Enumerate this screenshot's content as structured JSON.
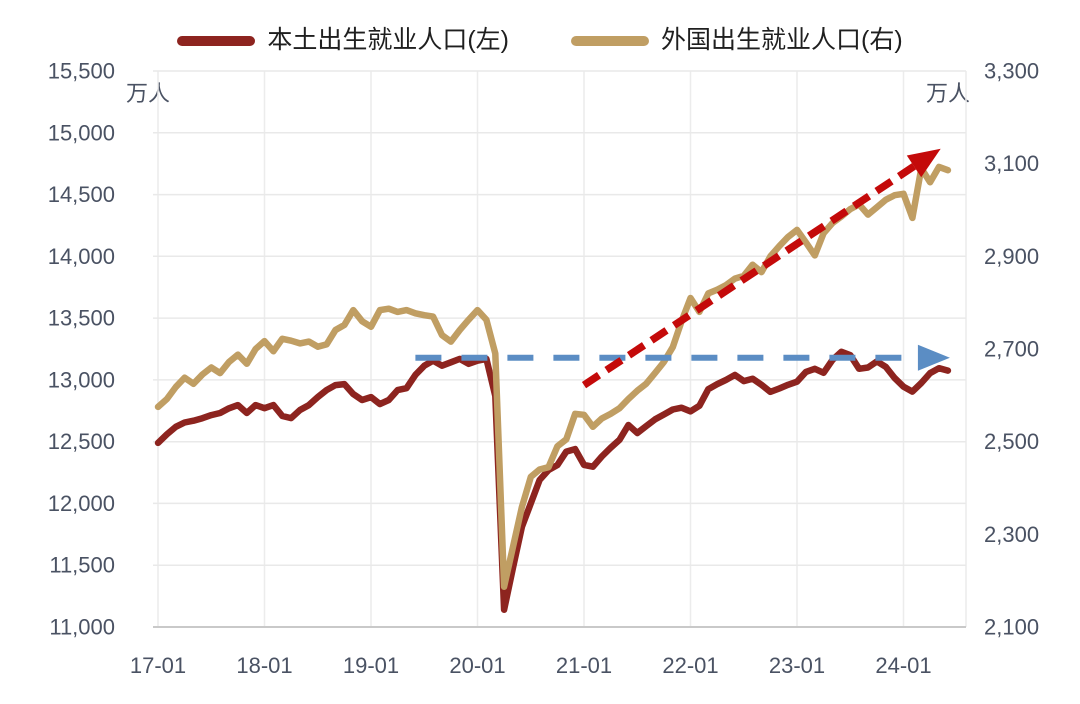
{
  "chart_data": {
    "type": "line",
    "title": "",
    "x": {
      "start": "17-01",
      "end": "24-06",
      "freq": "monthly",
      "tick_labels": [
        "17-01",
        "18-01",
        "19-01",
        "20-01",
        "21-01",
        "22-01",
        "23-01",
        "24-01"
      ]
    },
    "axes": {
      "left": {
        "unit": "万人",
        "min": 11000,
        "max": 15500,
        "step": 500,
        "tick_labels": [
          "15,500",
          "15,000",
          "14,500",
          "14,000",
          "13,500",
          "13,000",
          "12,500",
          "12,000",
          "11,500",
          "11,000"
        ]
      },
      "right": {
        "unit": "万人",
        "min": 2100,
        "max": 3300,
        "step": 200,
        "tick_labels": [
          "3,300",
          "3,100",
          "2,900",
          "2,700",
          "2,500",
          "2,300",
          "2,100"
        ]
      }
    },
    "grid": {
      "horizontal": true,
      "vertical": true
    },
    "legend_position": "top",
    "series": [
      {
        "name": "本土出生就业人口(左)",
        "axis": "left",
        "color": "#8D241F",
        "values": [
          12490,
          12560,
          12620,
          12655,
          12670,
          12690,
          12715,
          12732,
          12770,
          12796,
          12732,
          12796,
          12771,
          12796,
          12708,
          12691,
          12756,
          12796,
          12861,
          12917,
          12958,
          12966,
          12885,
          12837,
          12861,
          12804,
          12837,
          12917,
          12933,
          13040,
          13115,
          13155,
          13115,
          13142,
          13170,
          13130,
          13155,
          13170,
          12870,
          11140,
          11480,
          11810,
          12000,
          12190,
          12270,
          12310,
          12420,
          12440,
          12312,
          12297,
          12380,
          12450,
          12515,
          12635,
          12570,
          12625,
          12680,
          12720,
          12760,
          12775,
          12745,
          12790,
          12925,
          12965,
          13000,
          13040,
          12990,
          13010,
          12960,
          12903,
          12930,
          12960,
          12985,
          13065,
          13090,
          13057,
          13162,
          13227,
          13200,
          13090,
          13100,
          13150,
          13105,
          13015,
          12945,
          12905,
          12975,
          13055,
          13095,
          13075
        ]
      },
      {
        "name": "外国出生就业人口(右)",
        "axis": "right",
        "color": "#C09E63",
        "values": [
          2575,
          2592,
          2618,
          2638,
          2625,
          2645,
          2660,
          2648,
          2672,
          2688,
          2668,
          2700,
          2717,
          2695,
          2722,
          2718,
          2712,
          2716,
          2705,
          2710,
          2741,
          2752,
          2784,
          2760,
          2748,
          2784,
          2787,
          2780,
          2784,
          2777,
          2773,
          2770,
          2730,
          2716,
          2741,
          2763,
          2784,
          2763,
          2690,
          2187,
          2273,
          2359,
          2424,
          2440,
          2445,
          2490,
          2505,
          2560,
          2558,
          2532,
          2550,
          2560,
          2572,
          2592,
          2610,
          2625,
          2648,
          2672,
          2704,
          2760,
          2810,
          2780,
          2820,
          2828,
          2838,
          2852,
          2858,
          2882,
          2866,
          2900,
          2922,
          2942,
          2957,
          2930,
          2902,
          2950,
          2972,
          2986,
          3002,
          3012,
          2990,
          3006,
          3022,
          3032,
          3035,
          2983,
          3090,
          3060,
          3093,
          3086
        ]
      }
    ],
    "annotations": [
      {
        "name": "flat-trend-arrow",
        "shape": "dashed-arrow",
        "color": "#5B8DC4",
        "axis": "right",
        "from": {
          "x": "19-06",
          "y": 2681
        },
        "to": {
          "x": "24-06",
          "y": 2681
        }
      },
      {
        "name": "rising-trend-arrow",
        "shape": "dashed-arrow",
        "color": "#C40A0A",
        "axis": "right",
        "from": {
          "x": "21-01",
          "y": 2622
        },
        "to": {
          "x": "24-05",
          "y": 3130
        }
      }
    ]
  }
}
